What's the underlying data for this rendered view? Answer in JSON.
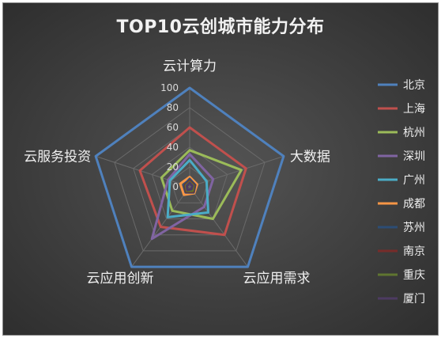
{
  "chart_data": {
    "type": "radar",
    "title": "TOP10云创城市能力分布",
    "axes": [
      "云计算力",
      "大数据",
      "云应用需求",
      "云应用创新",
      "云服务投资"
    ],
    "rlim": [
      0,
      100
    ],
    "ticks": [
      0,
      20,
      40,
      60,
      80,
      100
    ],
    "grid": true,
    "legend_position": "right",
    "series": [
      {
        "name": "北京",
        "color": "#4f81bd",
        "values": [
          100,
          100,
          100,
          100,
          100
        ]
      },
      {
        "name": "上海",
        "color": "#c0504d",
        "values": [
          60,
          60,
          60,
          50,
          53
        ]
      },
      {
        "name": "杭州",
        "color": "#9bbb59",
        "values": [
          37,
          55,
          40,
          30,
          30
        ]
      },
      {
        "name": "深圳",
        "color": "#8064a2",
        "values": [
          33,
          25,
          25,
          65,
          23
        ]
      },
      {
        "name": "广州",
        "color": "#4bacc6",
        "values": [
          27,
          18,
          32,
          38,
          21
        ]
      },
      {
        "name": "成都",
        "color": "#f79646",
        "values": [
          10,
          8,
          8,
          10,
          10
        ]
      },
      {
        "name": "苏州",
        "color": "#2c4d75",
        "values": [
          8,
          6,
          7,
          7,
          6
        ]
      },
      {
        "name": "南京",
        "color": "#772c2a",
        "values": [
          6,
          5,
          6,
          6,
          5
        ]
      },
      {
        "name": "重庆",
        "color": "#5f7530",
        "values": [
          5,
          4,
          5,
          5,
          4
        ]
      },
      {
        "name": "厦门",
        "color": "#4d3b62",
        "values": [
          4,
          3,
          3,
          4,
          3
        ]
      }
    ]
  }
}
